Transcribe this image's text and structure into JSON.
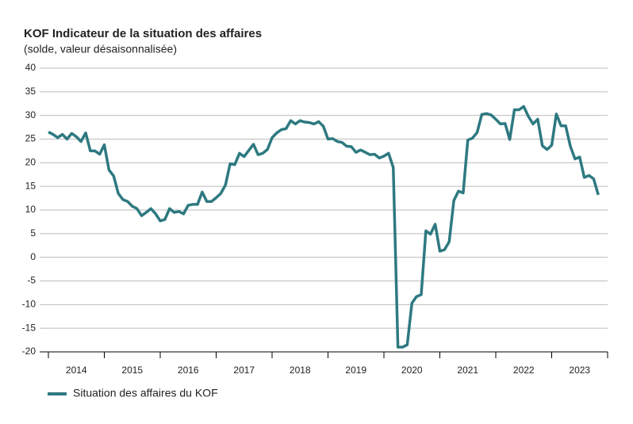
{
  "chart_data": {
    "type": "line",
    "title": "KOF Indicateur de la situation des affaires",
    "subtitle": "(solde, valeur désaisonnalisée)",
    "x": [
      2014,
      2014.083,
      2014.167,
      2014.25,
      2014.333,
      2014.417,
      2014.5,
      2014.583,
      2014.667,
      2014.75,
      2014.833,
      2014.917,
      2015,
      2015.083,
      2015.167,
      2015.25,
      2015.333,
      2015.417,
      2015.5,
      2015.583,
      2015.667,
      2015.75,
      2015.833,
      2015.917,
      2016,
      2016.083,
      2016.167,
      2016.25,
      2016.333,
      2016.417,
      2016.5,
      2016.583,
      2016.667,
      2016.75,
      2016.833,
      2016.917,
      2017,
      2017.083,
      2017.167,
      2017.25,
      2017.333,
      2017.417,
      2017.5,
      2017.583,
      2017.667,
      2017.75,
      2017.833,
      2017.917,
      2018,
      2018.083,
      2018.167,
      2018.25,
      2018.333,
      2018.417,
      2018.5,
      2018.583,
      2018.667,
      2018.75,
      2018.833,
      2018.917,
      2019,
      2019.083,
      2019.167,
      2019.25,
      2019.333,
      2019.417,
      2019.5,
      2019.583,
      2019.667,
      2019.75,
      2019.833,
      2019.917,
      2020,
      2020.083,
      2020.167,
      2020.25,
      2020.333,
      2020.417,
      2020.5,
      2020.583,
      2020.667,
      2020.75,
      2020.833,
      2020.917,
      2021,
      2021.083,
      2021.167,
      2021.25,
      2021.333,
      2021.417,
      2021.5,
      2021.583,
      2021.667,
      2021.75,
      2021.833,
      2021.917,
      2022,
      2022.083,
      2022.167,
      2022.25,
      2022.333,
      2022.417,
      2022.5,
      2022.583,
      2022.667,
      2022.75,
      2022.833,
      2022.917,
      2023,
      2023.083,
      2023.167,
      2023.25,
      2023.333,
      2023.417,
      2023.5,
      2023.583,
      2023.667,
      2023.75,
      2023.833
    ],
    "series": [
      {
        "name": "Situation des affaires du KOF",
        "color": "#2e7981",
        "values": [
          26.5,
          26,
          25.3,
          26,
          25,
          26.2,
          25.5,
          24.5,
          26.3,
          22.5,
          22.5,
          21.8,
          23.8,
          18.5,
          17.2,
          13.5,
          12.2,
          11.8,
          10.8,
          10.3,
          8.8,
          9.5,
          10.3,
          9.2,
          7.7,
          8,
          10.3,
          9.5,
          9.7,
          9.2,
          11,
          11.2,
          11.2,
          13.8,
          11.8,
          11.8,
          12.6,
          13.5,
          15.3,
          19.8,
          19.6,
          22,
          21.3,
          22.6,
          23.9,
          21.7,
          22,
          22.8,
          25.3,
          26.3,
          27,
          27.2,
          28.9,
          28.2,
          28.9,
          28.6,
          28.5,
          28.2,
          28.7,
          27.7,
          25,
          25.1,
          24.5,
          24.3,
          23.5,
          23.4,
          22.2,
          22.7,
          22.2,
          21.7,
          21.8,
          21,
          21.4,
          22,
          19,
          -19,
          -19,
          -18.5,
          -9.7,
          -8.3,
          -7.9,
          5.6,
          4.9,
          7,
          1.3,
          1.6,
          3.3,
          12,
          14,
          13.6,
          24.8,
          25.2,
          26.4,
          30.2,
          30.4,
          30.1,
          29.2,
          28.2,
          28.3,
          24.9,
          31.2,
          31.2,
          31.9,
          29.8,
          28.2,
          29.2,
          23.6,
          22.8,
          23.7,
          30.3,
          27.8,
          27.8,
          23.5,
          20.8,
          21.2,
          16.9,
          17.3,
          16.6,
          13.2
        ]
      }
    ],
    "xlim": [
      2014,
      2024
    ],
    "xticks": [
      {
        "value": 2014.5,
        "label": "2014"
      },
      {
        "value": 2015.5,
        "label": "2015"
      },
      {
        "value": 2016.5,
        "label": "2016"
      },
      {
        "value": 2017.5,
        "label": "2017"
      },
      {
        "value": 2018.5,
        "label": "2018"
      },
      {
        "value": 2019.5,
        "label": "2019"
      },
      {
        "value": 2020.5,
        "label": "2020"
      },
      {
        "value": 2021.5,
        "label": "2021"
      },
      {
        "value": 2022.5,
        "label": "2022"
      },
      {
        "value": 2023.5,
        "label": "2023"
      }
    ],
    "ylim": [
      -20,
      40
    ],
    "yticks": [
      -20,
      -15,
      -10,
      -5,
      0,
      5,
      10,
      15,
      20,
      25,
      30,
      35,
      40
    ],
    "grid": true,
    "legend": "bottom-left"
  }
}
